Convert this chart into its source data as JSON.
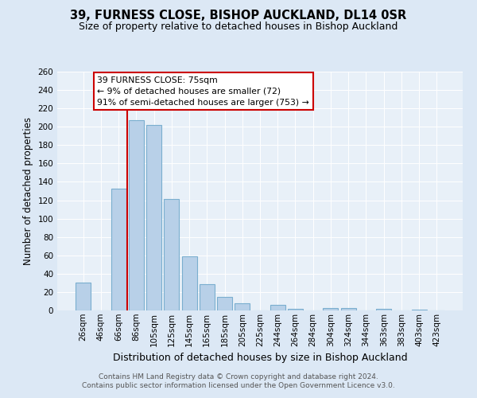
{
  "title1": "39, FURNESS CLOSE, BISHOP AUCKLAND, DL14 0SR",
  "title2": "Size of property relative to detached houses in Bishop Auckland",
  "xlabel": "Distribution of detached houses by size in Bishop Auckland",
  "ylabel": "Number of detached properties",
  "footnote1": "Contains HM Land Registry data © Crown copyright and database right 2024.",
  "footnote2": "Contains public sector information licensed under the Open Government Licence v3.0.",
  "bar_labels": [
    "26sqm",
    "46sqm",
    "66sqm",
    "86sqm",
    "105sqm",
    "125sqm",
    "145sqm",
    "165sqm",
    "185sqm",
    "205sqm",
    "225sqm",
    "244sqm",
    "264sqm",
    "284sqm",
    "304sqm",
    "324sqm",
    "344sqm",
    "363sqm",
    "383sqm",
    "403sqm",
    "423sqm"
  ],
  "bar_values": [
    30,
    0,
    133,
    207,
    202,
    121,
    59,
    29,
    15,
    8,
    0,
    6,
    2,
    0,
    3,
    3,
    0,
    2,
    0,
    1,
    0
  ],
  "bar_color": "#b8d0e8",
  "bar_edge_color": "#7aaecf",
  "vline_color": "#cc0000",
  "annotation_title": "39 FURNESS CLOSE: 75sqm",
  "annotation_line1": "← 9% of detached houses are smaller (72)",
  "annotation_line2": "91% of semi-detached houses are larger (753) →",
  "annotation_box_color": "#ffffff",
  "annotation_box_edge": "#cc0000",
  "ylim": [
    0,
    260
  ],
  "yticks": [
    0,
    20,
    40,
    60,
    80,
    100,
    120,
    140,
    160,
    180,
    200,
    220,
    240,
    260
  ],
  "grid_color": "#ffffff",
  "background_color": "#dce8f5",
  "plot_bg_color": "#e8f0f8",
  "title1_fontsize": 10.5,
  "title2_fontsize": 9,
  "ylabel_fontsize": 8.5,
  "xlabel_fontsize": 9,
  "tick_fontsize": 7.5,
  "footnote_fontsize": 6.5
}
